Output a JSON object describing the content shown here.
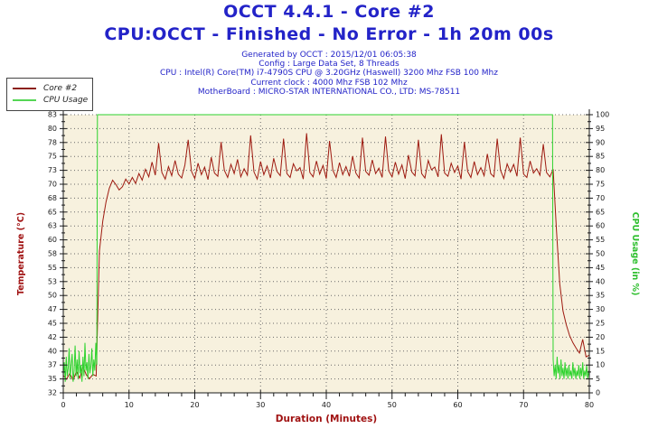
{
  "header": {
    "title": "OCCT 4.4.1 - Core #2",
    "subtitle": "CPU:OCCT - Finished - No Error - 1h 20m 00s",
    "info_lines": [
      "Generated by OCCT : 2015/12/01 06:05:38",
      "Config : Large Data Set, 8 Threads",
      "CPU : Intel(R) Core(TM) i7-4790S CPU @ 3.20GHz (Haswell) 3200 Mhz FSB 100 Mhz",
      "Current clock : 4000 Mhz FSB 102 Mhz",
      "MotherBoard : MICRO-STAR INTERNATIONAL CO., LTD: MS-78511"
    ]
  },
  "legend": {
    "items": [
      {
        "label": "Core #2",
        "color": "#8b2015"
      },
      {
        "label": "CPU Usage",
        "color": "#55d655"
      }
    ]
  },
  "colors": {
    "accent_blue": "#2323c8",
    "temp_red": "#9e1a10",
    "axis_red": "#a01212",
    "cpu_green": "#2ed32e",
    "axis_green": "#2fbf2f",
    "plot_bg": "#f7f1de",
    "grid": "#6b6b6b",
    "axis_line": "#1a1a1a"
  },
  "chart_data": {
    "type": "line",
    "title": "OCCT 4.4.1 - Core #2",
    "grid": "dotted",
    "legend_position": "top-left",
    "plot_bg": "#f7f1de",
    "x_axis": {
      "label": "Duration (Minutes)",
      "min": 0,
      "max": 80,
      "major_tick_step": 10,
      "minor_tick_step": 2,
      "major_tick_labels": [
        "0",
        "10",
        "20",
        "30",
        "40",
        "50",
        "60",
        "70",
        "80"
      ]
    },
    "y_left": {
      "label": "Temperature (°C)",
      "min": 32,
      "max": 83,
      "tick_labels_top_to_bottom": [
        "83",
        "80",
        "78",
        "75",
        "73",
        "70",
        "68",
        "65",
        "63",
        "60",
        "58",
        "55",
        "53",
        "50",
        "47",
        "45",
        "42",
        "40",
        "37",
        "35",
        "32"
      ]
    },
    "y_right": {
      "label": "CPU Usage (in %)",
      "min": 0,
      "max": 100,
      "tick_labels_top_to_bottom": [
        "100",
        "95",
        "90",
        "85",
        "80",
        "75",
        "70",
        "65",
        "60",
        "55",
        "50",
        "45",
        "40",
        "35",
        "30",
        "25",
        "20",
        "15",
        "10",
        "5",
        "0"
      ]
    },
    "series": [
      {
        "name": "Core #2",
        "axis": "left",
        "unit": "°C",
        "color": "#9e1a10",
        "t_start": 0,
        "t_step": 0.5,
        "values": [
          35.2,
          34.5,
          35.6,
          34.3,
          35.9,
          34.7,
          36.8,
          35.3,
          34.6,
          35.4,
          35.1,
          58,
          63.5,
          67,
          69.5,
          71,
          70.2,
          69.2,
          69.8,
          71.2,
          70.3,
          71.5,
          70.4,
          72.2,
          71,
          73,
          71.6,
          74.3,
          71.9,
          77.8,
          72.4,
          71.2,
          73.5,
          71.8,
          74.6,
          72.1,
          71.4,
          73.8,
          78.4,
          72.6,
          71.3,
          74.1,
          72,
          73.4,
          71.1,
          75.2,
          72.3,
          71.7,
          78,
          72.8,
          71.5,
          73.9,
          72.2,
          74.8,
          71.6,
          73.1,
          71.9,
          79.2,
          72.5,
          71.2,
          74.4,
          72,
          73.6,
          71.4,
          75,
          72.6,
          71.8,
          78.6,
          72.2,
          71.5,
          74,
          72.7,
          73.3,
          71.2,
          79.6,
          72.4,
          71.6,
          74.5,
          72.1,
          73.7,
          71.3,
          78.2,
          72.8,
          71.5,
          74.2,
          72,
          73.5,
          71.7,
          75.4,
          72.3,
          71.4,
          78.8,
          72.6,
          71.9,
          74.7,
          72.2,
          73.2,
          71.5,
          79,
          72.7,
          71.6,
          74.3,
          72.1,
          73.8,
          71.3,
          75.6,
          72.5,
          71.8,
          78.4,
          72.2,
          71.4,
          74.6,
          72.9,
          73.4,
          71.6,
          79.4,
          72.3,
          71.7,
          74.1,
          72.4,
          73.6,
          71.2,
          78,
          72.6,
          71.5,
          74.4,
          72,
          73.3,
          71.8,
          75.8,
          72.2,
          71.6,
          78.6,
          72.8,
          71.3,
          74,
          72.5,
          73.9,
          71.7,
          78.8,
          72.1,
          71.5,
          74.5,
          72.3,
          73.1,
          71.9,
          77.6,
          72.4,
          71.6,
          73,
          62,
          52,
          47,
          44.5,
          42.5,
          41.2,
          40.2,
          39.3,
          41.8,
          38.6,
          38.9
        ]
      },
      {
        "name": "CPU Usage",
        "axis": "right",
        "unit": "%",
        "color": "#2ed32e",
        "points": [
          [
            0,
            6
          ],
          [
            0.15,
            11
          ],
          [
            0.3,
            4
          ],
          [
            0.45,
            13
          ],
          [
            0.6,
            6
          ],
          [
            0.75,
            9
          ],
          [
            0.9,
            16
          ],
          [
            1.05,
            5
          ],
          [
            1.2,
            10
          ],
          [
            1.35,
            14
          ],
          [
            1.5,
            4
          ],
          [
            1.65,
            8
          ],
          [
            1.8,
            17
          ],
          [
            1.95,
            6
          ],
          [
            2.1,
            12
          ],
          [
            2.25,
            5
          ],
          [
            2.4,
            15
          ],
          [
            2.55,
            7
          ],
          [
            2.7,
            10
          ],
          [
            2.85,
            4
          ],
          [
            3,
            13
          ],
          [
            3.15,
            6
          ],
          [
            3.3,
            18
          ],
          [
            3.45,
            8
          ],
          [
            3.6,
            11
          ],
          [
            3.75,
            5
          ],
          [
            3.9,
            14
          ],
          [
            4.05,
            7
          ],
          [
            4.2,
            10
          ],
          [
            4.35,
            16
          ],
          [
            4.5,
            6
          ],
          [
            4.65,
            12
          ],
          [
            4.8,
            8
          ],
          [
            4.95,
            18
          ],
          [
            5.1,
            10
          ],
          [
            5.2,
            100
          ],
          [
            74.4,
            100
          ],
          [
            74.5,
            12
          ],
          [
            74.65,
            6
          ],
          [
            74.8,
            10
          ],
          [
            74.95,
            5
          ],
          [
            75.1,
            13
          ],
          [
            75.25,
            7
          ],
          [
            75.4,
            10
          ],
          [
            75.55,
            5
          ],
          [
            75.7,
            12
          ],
          [
            75.85,
            6
          ],
          [
            76,
            9
          ],
          [
            76.15,
            5
          ],
          [
            76.3,
            11
          ],
          [
            76.45,
            6
          ],
          [
            76.6,
            9
          ],
          [
            76.75,
            5
          ],
          [
            76.9,
            10
          ],
          [
            77.05,
            6
          ],
          [
            77.2,
            8
          ],
          [
            77.35,
            5
          ],
          [
            77.5,
            11
          ],
          [
            77.65,
            6
          ],
          [
            77.8,
            9
          ],
          [
            77.95,
            5
          ],
          [
            78.1,
            8
          ],
          [
            78.25,
            6
          ],
          [
            78.4,
            10
          ],
          [
            78.55,
            5
          ],
          [
            78.7,
            9
          ],
          [
            78.85,
            6
          ],
          [
            79,
            11
          ],
          [
            79.15,
            5
          ],
          [
            79.3,
            8
          ],
          [
            79.45,
            6
          ],
          [
            79.6,
            10
          ],
          [
            79.75,
            5
          ],
          [
            79.9,
            8
          ],
          [
            80,
            6
          ]
        ]
      }
    ]
  }
}
